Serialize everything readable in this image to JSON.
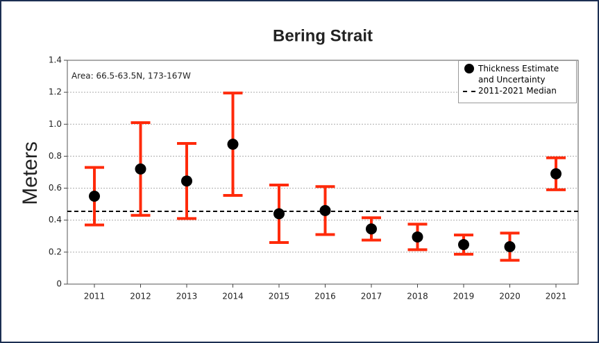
{
  "chart_data": {
    "type": "errorbar",
    "title": "Bering Strait",
    "ylabel": "Meters",
    "annotation": "Area: 66.5-63.5N, 173-167W",
    "categories": [
      "2011",
      "2012",
      "2013",
      "2014",
      "2015",
      "2016",
      "2017",
      "2018",
      "2019",
      "2020",
      "2021"
    ],
    "series": [
      {
        "name": "Thickness Estimate and Uncertainty",
        "color": "#000000",
        "error_color": "#ff2a0a",
        "values": [
          0.55,
          0.72,
          0.645,
          0.875,
          0.44,
          0.46,
          0.345,
          0.295,
          0.247,
          0.234,
          0.69
        ],
        "errors": [
          0.18,
          0.29,
          0.235,
          0.32,
          0.18,
          0.15,
          0.07,
          0.08,
          0.06,
          0.085,
          0.1
        ]
      }
    ],
    "median": {
      "name": "2011-2021 Median",
      "value": 0.455
    },
    "ylim": [
      0,
      1.4
    ],
    "yticks": [
      0,
      0.2,
      0.4,
      0.6,
      0.8,
      {
        "value": 1,
        "label": "1.0"
      },
      1.2,
      1.4
    ],
    "grid": true,
    "legend": "upper right"
  }
}
